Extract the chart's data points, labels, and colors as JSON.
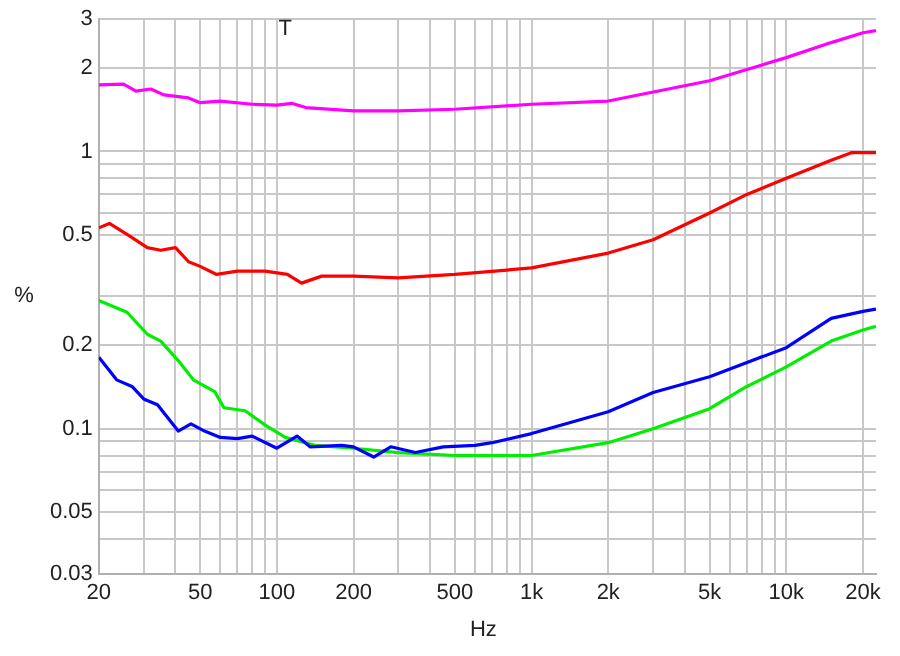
{
  "chart_data": {
    "type": "line",
    "xlabel": "Hz",
    "ylabel": "%",
    "annotations": [
      "T"
    ],
    "log": "xy",
    "grid": true,
    "xlim": [
      20,
      22500
    ],
    "ylim": [
      0.03,
      3
    ],
    "xticks": [
      20,
      {
        "value": 30,
        "label": null
      },
      {
        "value": 40,
        "label": null
      },
      50,
      {
        "value": 60,
        "label": null
      },
      {
        "value": 70,
        "label": null
      },
      {
        "value": 80,
        "label": null
      },
      {
        "value": 90,
        "label": null
      },
      100,
      200,
      {
        "value": 300,
        "label": null
      },
      {
        "value": 400,
        "label": null
      },
      500,
      {
        "value": 600,
        "label": null
      },
      {
        "value": 700,
        "label": null
      },
      {
        "value": 800,
        "label": null
      },
      {
        "value": 900,
        "label": null
      },
      {
        "value": 1000,
        "label": "1k"
      },
      {
        "value": 2000,
        "label": "2k"
      },
      {
        "value": 3000,
        "label": null
      },
      {
        "value": 4000,
        "label": null
      },
      {
        "value": 5000,
        "label": "5k"
      },
      {
        "value": 6000,
        "label": null
      },
      {
        "value": 7000,
        "label": null
      },
      {
        "value": 8000,
        "label": null
      },
      {
        "value": 9000,
        "label": null
      },
      {
        "value": 10000,
        "label": "10k"
      },
      {
        "value": 20000,
        "label": "20k"
      }
    ],
    "yticks": [
      0.03,
      {
        "value": 0.04,
        "label": null
      },
      0.05,
      {
        "value": 0.06,
        "label": null
      },
      {
        "value": 0.07,
        "label": null
      },
      {
        "value": 0.08,
        "label": null
      },
      {
        "value": 0.09,
        "label": null
      },
      0.1,
      0.2,
      {
        "value": 0.3,
        "label": null
      },
      0.5,
      {
        "value": 0.6,
        "label": null
      },
      {
        "value": 0.7,
        "label": null
      },
      {
        "value": 0.8,
        "label": null
      },
      {
        "value": 0.9,
        "label": null
      },
      1,
      2,
      3
    ],
    "series": [
      {
        "color": "#ff00ff",
        "x": [
          20,
          25,
          28,
          32,
          36,
          45,
          50,
          60,
          80,
          100,
          115,
          130,
          200,
          300,
          500,
          1000,
          2000,
          5000,
          10000,
          15000,
          20000,
          22500
        ],
        "values": [
          1.74,
          1.75,
          1.65,
          1.68,
          1.6,
          1.56,
          1.5,
          1.52,
          1.48,
          1.47,
          1.49,
          1.44,
          1.4,
          1.4,
          1.42,
          1.48,
          1.52,
          1.8,
          2.18,
          2.47,
          2.68,
          2.73
        ]
      },
      {
        "color": "#ff0000",
        "x": [
          20,
          22,
          26,
          31,
          35,
          40,
          45,
          50,
          58,
          70,
          90,
          110,
          125,
          150,
          200,
          300,
          500,
          1000,
          2000,
          3000,
          5000,
          7000,
          10000,
          15000,
          18000,
          22500
        ],
        "values": [
          0.53,
          0.55,
          0.5,
          0.45,
          0.44,
          0.45,
          0.4,
          0.385,
          0.36,
          0.37,
          0.37,
          0.36,
          0.335,
          0.355,
          0.355,
          0.35,
          0.36,
          0.38,
          0.43,
          0.48,
          0.6,
          0.7,
          0.8,
          0.93,
          0.99,
          0.99
        ]
      },
      {
        "color": "#0000ff",
        "x": [
          20,
          23.5,
          27,
          30,
          34,
          41,
          46,
          52,
          60,
          70,
          80,
          100,
          120,
          135,
          180,
          200,
          240,
          280,
          350,
          450,
          600,
          700,
          1000,
          2000,
          3000,
          5000,
          10000,
          15000,
          20000,
          22500
        ],
        "values": [
          0.181,
          0.15,
          0.142,
          0.128,
          0.122,
          0.098,
          0.104,
          0.098,
          0.093,
          0.092,
          0.094,
          0.085,
          0.094,
          0.086,
          0.087,
          0.086,
          0.079,
          0.086,
          0.082,
          0.086,
          0.087,
          0.089,
          0.096,
          0.115,
          0.135,
          0.154,
          0.196,
          0.25,
          0.265,
          0.27
        ]
      },
      {
        "color": "#00ee00",
        "x": [
          20,
          25.8,
          31,
          35,
          41,
          47,
          57,
          62,
          75,
          90,
          108,
          142,
          200,
          300,
          500,
          800,
          1000,
          2000,
          3000,
          5000,
          7000,
          10000,
          15000,
          20000,
          22500
        ],
        "values": [
          0.29,
          0.263,
          0.219,
          0.207,
          0.176,
          0.15,
          0.136,
          0.119,
          0.116,
          0.103,
          0.093,
          0.087,
          0.085,
          0.082,
          0.08,
          0.08,
          0.08,
          0.089,
          0.1,
          0.118,
          0.142,
          0.167,
          0.207,
          0.227,
          0.234
        ]
      }
    ]
  }
}
